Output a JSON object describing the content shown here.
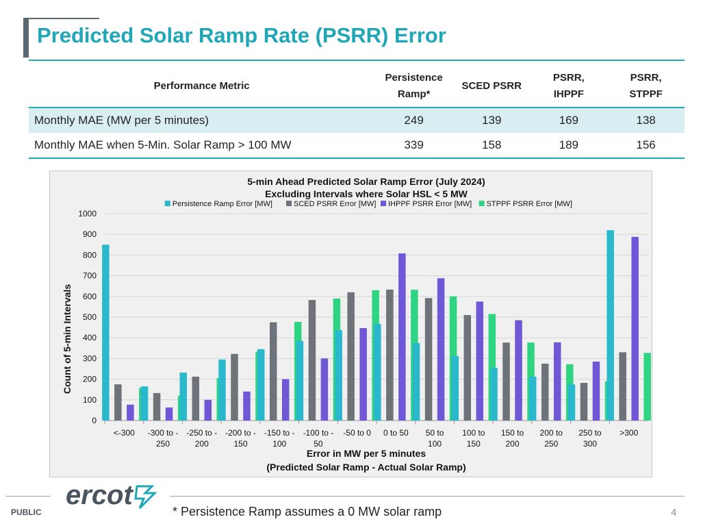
{
  "slide": {
    "title": "Predicted Solar Ramp Rate (PSRR) Error",
    "public_label": "PUBLIC",
    "footnote": "* Persistence Ramp assumes a 0 MW solar ramp",
    "page_number": "4",
    "logo_text": "ercot"
  },
  "table": {
    "headers": {
      "metric": "Performance Metric",
      "persistence_line1": "Persistence",
      "persistence_line2": "Ramp*",
      "sced": "SCED PSRR",
      "ihppf_line1": "PSRR,",
      "ihppf_line2": "IHPPF",
      "stppf_line1": "PSRR,",
      "stppf_line2": "STPPF"
    },
    "rows": [
      {
        "label": "Monthly MAE (MW per 5 minutes)",
        "values": [
          "249",
          "139",
          "169",
          "138"
        ]
      },
      {
        "label": "Monthly MAE when 5-Min. Solar Ramp > 100 MW",
        "values": [
          "339",
          "158",
          "189",
          "156"
        ]
      }
    ]
  },
  "chart_data": {
    "type": "bar",
    "title_line1": "5-min Ahead Predicted Solar Ramp Error (July 2024)",
    "title_line2": "Excluding Intervals where Solar HSL < 5 MW",
    "xlabel_line1": "Error in MW per 5 minutes",
    "xlabel_line2": "(Predicted Solar Ramp - Actual Solar Ramp)",
    "ylabel": "Count of 5-min Intervals",
    "ylim": [
      0,
      1000
    ],
    "yticks": [
      0,
      100,
      200,
      300,
      400,
      500,
      600,
      700,
      800,
      900,
      1000
    ],
    "grid": true,
    "legend_position": "top",
    "categories": [
      [
        "<-300"
      ],
      [
        "-300 to -",
        "250"
      ],
      [
        "-250 to -",
        "200"
      ],
      [
        "-200 to -",
        "150"
      ],
      [
        "-150 to -",
        "100"
      ],
      [
        "-100 to -",
        "50"
      ],
      [
        "-50 to 0"
      ],
      [
        "0 to 50"
      ],
      [
        "50 to",
        "100"
      ],
      [
        "100 to",
        "150"
      ],
      [
        "150 to",
        "200"
      ],
      [
        "200 to",
        "250"
      ],
      [
        "250 to",
        "300"
      ],
      [
        ">300"
      ]
    ],
    "series": [
      {
        "name": "Persistence Ramp Error [MW]",
        "color": "#2ab8cc",
        "values": [
          850,
          165,
          232,
          295,
          345,
          385,
          437,
          467,
          375,
          312,
          255,
          212,
          175,
          920
        ]
      },
      {
        "name": "SCED PSRR Error [MW]",
        "color": "#6d7378",
        "values": [
          175,
          133,
          212,
          322,
          475,
          583,
          620,
          633,
          592,
          510,
          377,
          275,
          182,
          330
        ]
      },
      {
        "name": "IHPPF PSRR Error [MW]",
        "color": "#6f57d6",
        "values": [
          77,
          63,
          100,
          140,
          200,
          300,
          447,
          808,
          688,
          575,
          485,
          378,
          285,
          888
        ]
      },
      {
        "name": "STPPF PSRR Error [MW]",
        "color": "#2fd483",
        "values": [
          158,
          120,
          205,
          333,
          477,
          590,
          630,
          632,
          600,
          515,
          377,
          272,
          190,
          327
        ]
      }
    ]
  }
}
